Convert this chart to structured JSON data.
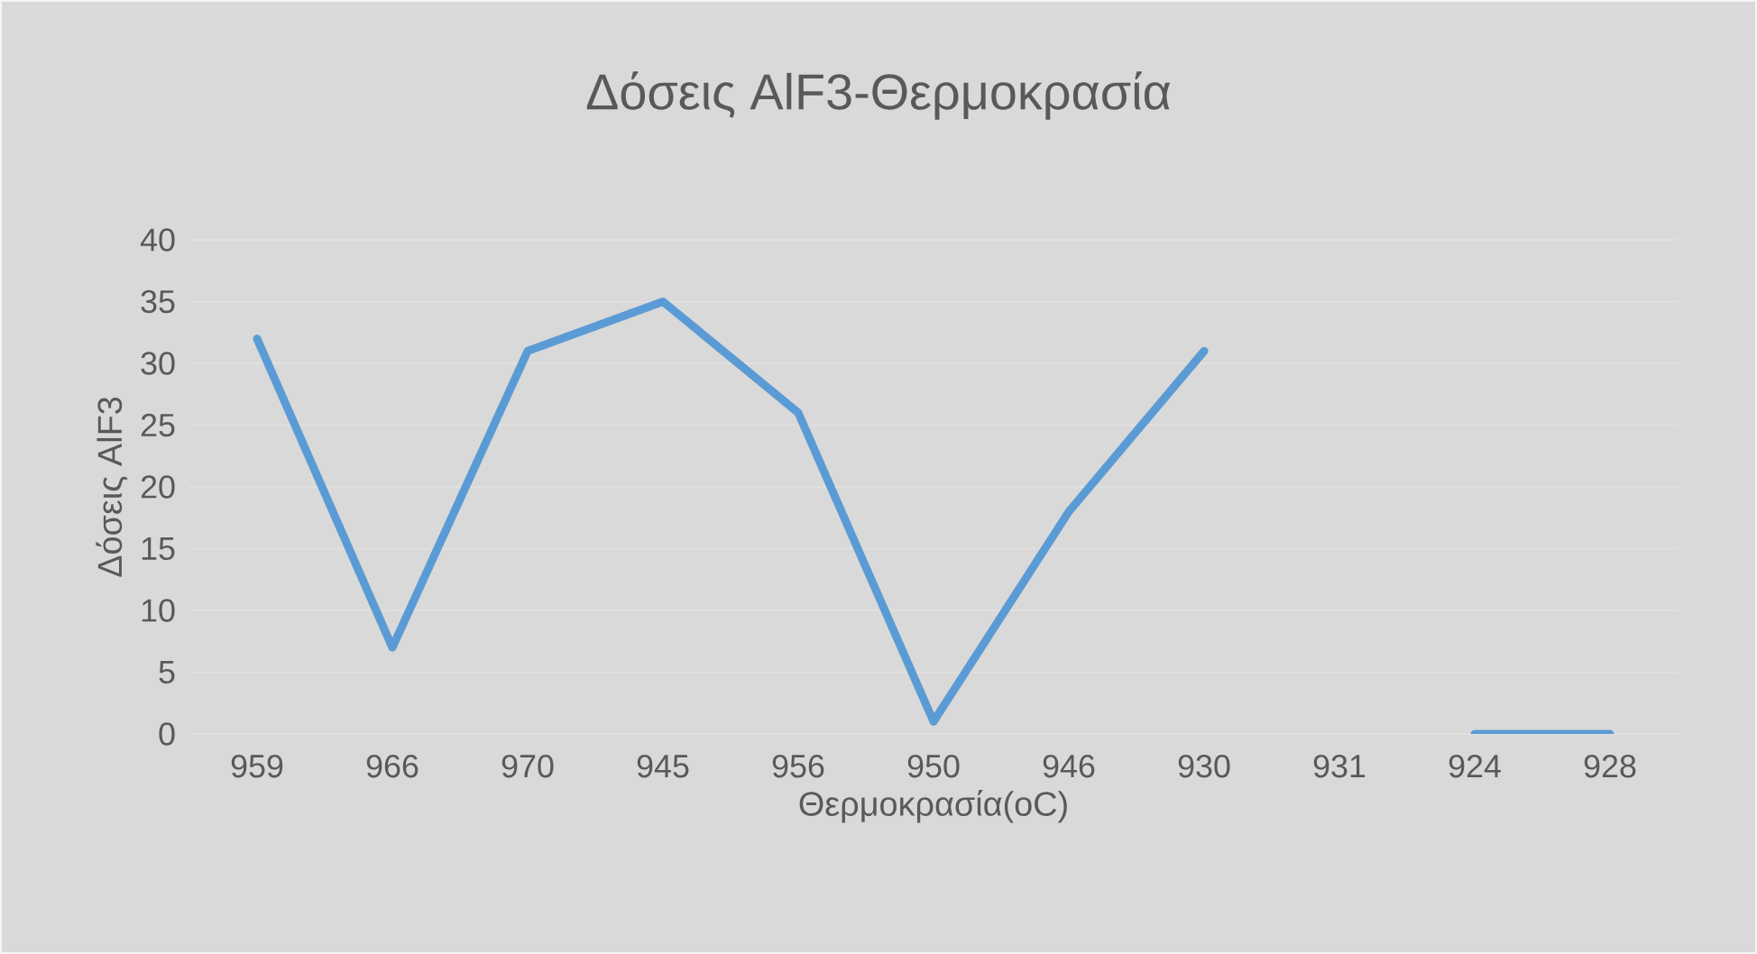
{
  "chart_data": {
    "type": "line",
    "title": "Δόσεις AlF3-Θερμοκρασία",
    "xlabel": "Θερμοκρασία(oC)",
    "ylabel": "Δόσεις AlF3",
    "categories": [
      "959",
      "966",
      "970",
      "945",
      "956",
      "950",
      "946",
      "930",
      "931",
      "924",
      "928"
    ],
    "series": [
      {
        "color": "#5b9bd5",
        "values": [
          32,
          7,
          31,
          35,
          26,
          1,
          18,
          31,
          null,
          0,
          0
        ]
      }
    ],
    "ylim": [
      0,
      40
    ],
    "yticks": [
      0,
      5,
      10,
      15,
      20,
      25,
      30,
      35,
      40
    ],
    "grid": "y",
    "marker": "none",
    "line_style": "solid"
  }
}
